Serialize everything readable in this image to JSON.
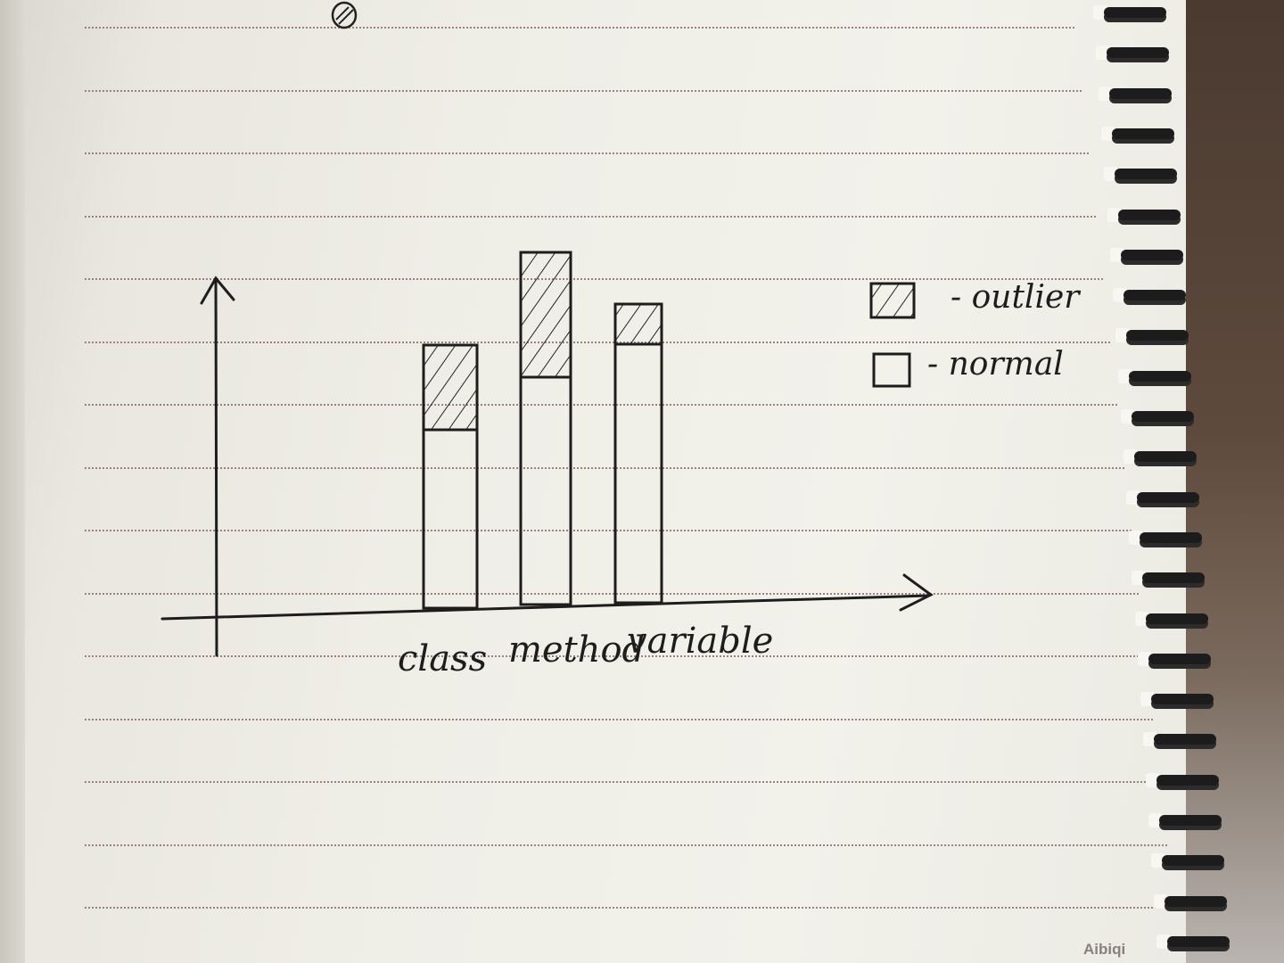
{
  "brand": "Aibiqi",
  "chart_data": {
    "type": "bar",
    "stacked": true,
    "title": "",
    "xlabel": "",
    "ylabel": "",
    "ylim": [
      0,
      10
    ],
    "grid": false,
    "legend_position": "top-right",
    "categories": [
      "class",
      "method",
      "variable"
    ],
    "series": [
      {
        "name": "normal",
        "pattern": "none",
        "values": [
          4.0,
          5.1,
          5.8
        ]
      },
      {
        "name": "outlier",
        "pattern": "hatched",
        "values": [
          1.9,
          2.8,
          0.9
        ]
      }
    ],
    "legend": [
      {
        "label": "- outlier",
        "pattern": "hatched"
      },
      {
        "label": "- normal",
        "pattern": "none"
      }
    ]
  }
}
